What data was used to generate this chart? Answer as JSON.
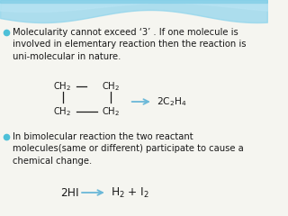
{
  "bg_color": "#f5f5f0",
  "wave_color1": "#7ecce8",
  "wave_color2": "#a8ddf0",
  "bullet_color": "#4dc0d8",
  "text_color": "#1a1a1a",
  "bullet1_lines": [
    "Molecularity cannot exceed ‘3’ . If one molecule is",
    "involved in elementary reaction then the reaction is",
    "uni-molecular in nature."
  ],
  "bullet2_lines": [
    "In bimolecular reaction the two reactant",
    "molecules(same or different) participate to cause a",
    "chemical change."
  ],
  "font_size": 7.2,
  "arrow_color": "#6ab8d8"
}
